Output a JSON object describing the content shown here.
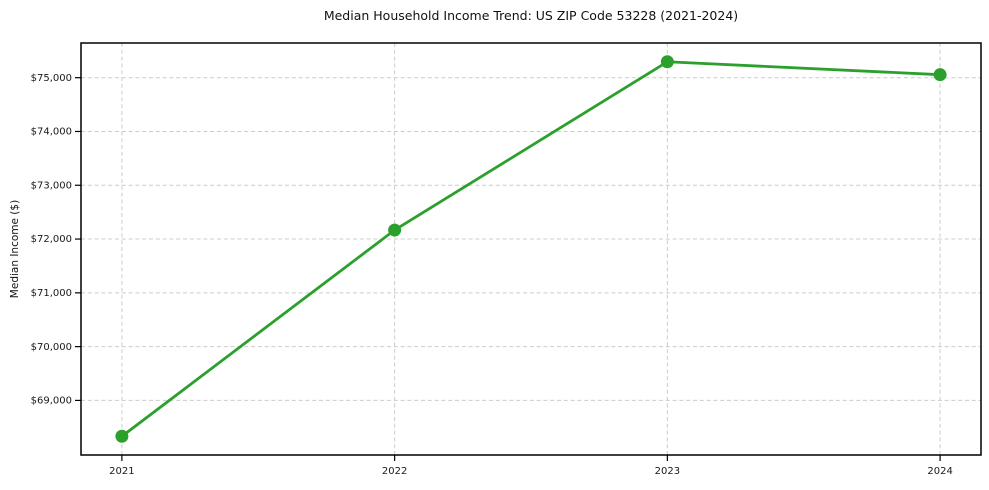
{
  "chart_data": {
    "type": "line",
    "title": "Median Household Income Trend: US ZIP Code 53228 (2021-2024)",
    "xlabel": "",
    "ylabel": "Median Income ($)",
    "x": [
      2021,
      2022,
      2023,
      2024
    ],
    "series": [
      {
        "name": "Median Household Income",
        "values": [
          68333,
          72167,
          75296,
          75056
        ]
      }
    ],
    "xlim": [
      2020.85,
      2024.15
    ],
    "ylim": [
      67985,
      75645
    ],
    "xticks": [
      {
        "value": 2021,
        "label": "2021"
      },
      {
        "value": 2022,
        "label": "2022"
      },
      {
        "value": 2023,
        "label": "2023"
      },
      {
        "value": 2024,
        "label": "2024"
      }
    ],
    "yticks": [
      {
        "value": 69000,
        "label": "$69,000"
      },
      {
        "value": 70000,
        "label": "$70,000"
      },
      {
        "value": 71000,
        "label": "$71,000"
      },
      {
        "value": 72000,
        "label": "$72,000"
      },
      {
        "value": 73000,
        "label": "$73,000"
      },
      {
        "value": 74000,
        "label": "$74,000"
      },
      {
        "value": 75000,
        "label": "$75,000"
      }
    ],
    "grid": true,
    "grid_style": "dashed",
    "legend": false,
    "legend_position": "none",
    "line_color": "#2ca02c",
    "grid_color": "#cccccc",
    "spine_color": "#000000",
    "background": "#ffffff",
    "marker": "circle",
    "marker_size": 13,
    "line_width": 2.8
  }
}
